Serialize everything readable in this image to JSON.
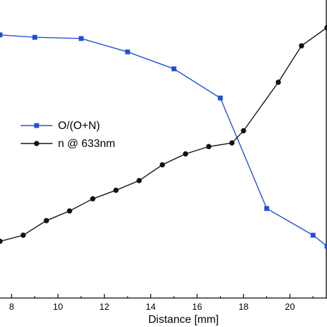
{
  "chart_data": {
    "type": "line",
    "xlabel": "Distance [mm]",
    "ylabel": "",
    "xlim": [
      7.5,
      21.6
    ],
    "x_ticks": [
      8,
      10,
      12,
      14,
      16,
      18,
      20
    ],
    "grid": false,
    "legend_position": "center-left",
    "series": [
      {
        "name": "O/(O+N)",
        "color": "#1f4fd6",
        "marker": "square",
        "x": [
          7.5,
          9.0,
          11.0,
          13.0,
          15.0,
          17.0,
          19.0,
          21.0,
          21.6
        ],
        "y": [
          0.97,
          0.96,
          0.955,
          0.9,
          0.83,
          0.71,
          0.255,
          0.145,
          0.1
        ]
      },
      {
        "name": "n @ 633nm",
        "color": "#111111",
        "marker": "circle",
        "x": [
          7.5,
          8.5,
          9.5,
          10.5,
          11.5,
          12.5,
          13.5,
          14.5,
          15.5,
          16.5,
          17.5,
          18.0,
          19.5,
          20.5,
          21.6
        ],
        "y": [
          0.12,
          0.145,
          0.205,
          0.245,
          0.295,
          0.33,
          0.37,
          0.435,
          0.48,
          0.51,
          0.525,
          0.575,
          0.775,
          0.925,
          1.0
        ]
      }
    ]
  }
}
